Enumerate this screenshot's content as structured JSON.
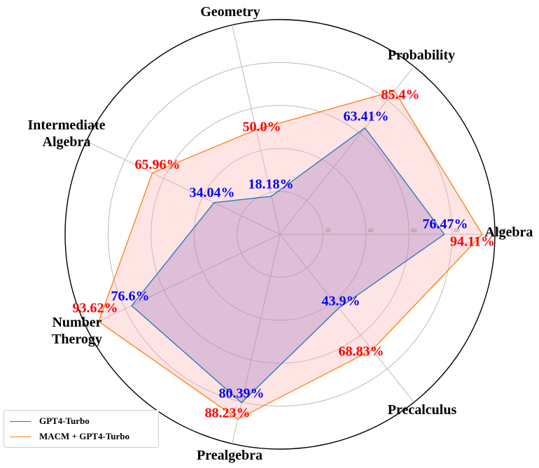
{
  "chart_data": {
    "type": "radar",
    "categories": [
      "Algebra",
      "Probability",
      "Geometry",
      "Intermediate\nAlgebra",
      "Number\nTherogy",
      "Prealgebra",
      "Precalculus"
    ],
    "rlim": [
      0,
      100
    ],
    "ticks": [
      20,
      40,
      60,
      80,
      100
    ],
    "tick_labels": [
      "20",
      "40",
      "60",
      "80",
      "100"
    ],
    "grid": true,
    "legend_position": "bottom-left",
    "series": [
      {
        "name": "GPT4-Turbo",
        "values": [
          76.47,
          63.41,
          18.18,
          34.04,
          76.6,
          80.39,
          43.9
        ],
        "labels": [
          "76.47%",
          "63.41%",
          "18.18%",
          "34.04%",
          "76.6%",
          "80.39%",
          "43.9%"
        ],
        "color": "#1f77b4",
        "fill": "#9467bd",
        "label_color": "#0000ff"
      },
      {
        "name": "MACM + GPT4-Turbo",
        "values": [
          94.11,
          85.4,
          50.0,
          65.96,
          93.62,
          88.23,
          68.83
        ],
        "labels": [
          "94.11%",
          "85.4%",
          "50.0%",
          "65.96%",
          "93.62%",
          "88.23%",
          "68.83%"
        ],
        "color": "#ff7f0e",
        "fill": "#ffb3b3",
        "label_color": "#ff0000"
      }
    ]
  }
}
